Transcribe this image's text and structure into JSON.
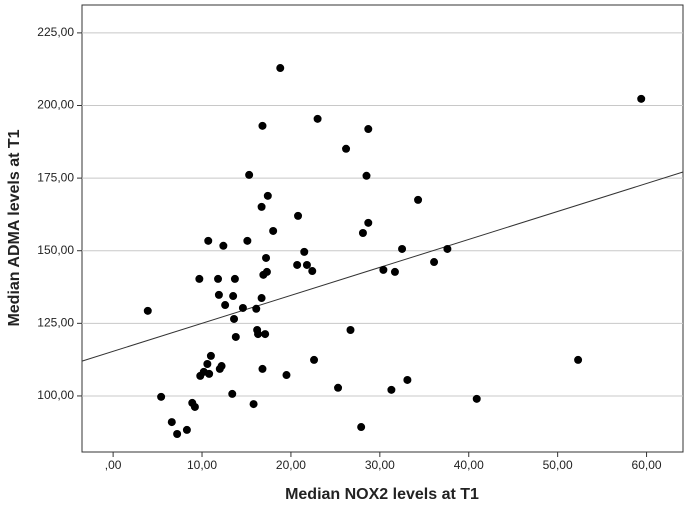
{
  "chart_data": {
    "type": "scatter",
    "x_label": "Median NOX2 levels at T1",
    "y_label": "Median ADMA levels at T1",
    "x": [
      3.9,
      5.4,
      6.6,
      7.2,
      8.3,
      8.9,
      9.2,
      9.7,
      9.8,
      10.2,
      10.6,
      10.7,
      10.8,
      11.0,
      11.8,
      11.9,
      12.0,
      12.2,
      12.4,
      12.6,
      13.4,
      13.5,
      13.6,
      13.7,
      13.8,
      14.6,
      15.1,
      15.3,
      15.8,
      16.1,
      16.2,
      16.3,
      16.7,
      16.7,
      16.8,
      16.8,
      16.9,
      17.1,
      17.2,
      17.3,
      17.4,
      18.0,
      18.8,
      19.5,
      20.7,
      20.8,
      21.5,
      21.8,
      22.4,
      22.6,
      23.0,
      25.3,
      26.2,
      26.7,
      27.9,
      28.1,
      28.5,
      28.7,
      28.7,
      30.4,
      31.3,
      31.7,
      32.5,
      33.1,
      34.3,
      36.1,
      37.6,
      40.9,
      52.3,
      59.4
    ],
    "values": [
      129.3,
      99.7,
      91.0,
      86.9,
      88.3,
      97.6,
      96.2,
      140.3,
      106.9,
      108.3,
      111.0,
      153.4,
      107.6,
      113.8,
      140.3,
      134.8,
      109.3,
      110.3,
      151.7,
      131.3,
      100.7,
      134.4,
      126.5,
      140.3,
      120.3,
      130.3,
      153.4,
      176.1,
      97.2,
      130.0,
      122.7,
      121.3,
      133.7,
      165.1,
      193.0,
      109.3,
      141.7,
      121.3,
      147.5,
      142.7,
      168.9,
      156.8,
      212.9,
      107.2,
      145.1,
      162.0,
      149.6,
      145.1,
      143.0,
      112.4,
      195.4,
      102.8,
      185.1,
      122.7,
      89.3,
      156.1,
      175.8,
      191.9,
      159.6,
      143.4,
      102.1,
      142.7,
      150.6,
      105.5,
      167.5,
      146.1,
      150.6,
      99.0,
      112.4,
      202.3
    ],
    "color": "#000000",
    "fit_line": {
      "x": [
        -3.5,
        64.1
      ],
      "values": [
        112.0,
        177.1
      ],
      "color": "#333333"
    },
    "xlim": [
      -3.5,
      64.1
    ],
    "ylim": [
      80.7,
      234.6
    ],
    "xticks": [
      {
        "value": 0,
        "label": ",00"
      },
      {
        "value": 10,
        "label": "10,00"
      },
      {
        "value": 20,
        "label": "20,00"
      },
      {
        "value": 30,
        "label": "30,00"
      },
      {
        "value": 40,
        "label": "40,00"
      },
      {
        "value": 50,
        "label": "50,00"
      },
      {
        "value": 60,
        "label": "60,00"
      }
    ],
    "yticks": [
      {
        "value": 100,
        "label": "100,00"
      },
      {
        "value": 125,
        "label": "125,00"
      },
      {
        "value": 150,
        "label": "150,00"
      },
      {
        "value": 175,
        "label": "175,00"
      },
      {
        "value": 200,
        "label": "200,00"
      },
      {
        "value": 225,
        "label": "225,00"
      }
    ],
    "grid": true
  }
}
